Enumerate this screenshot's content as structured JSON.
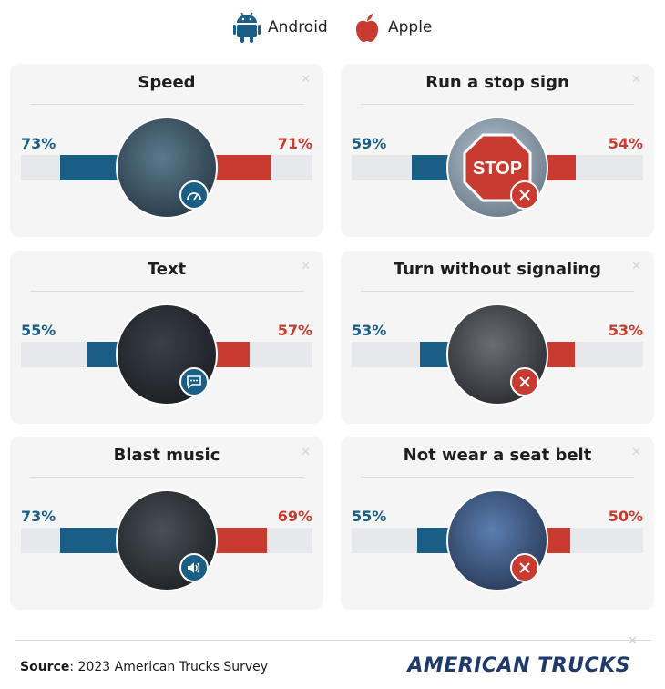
{
  "legend": {
    "android": {
      "label": "Android",
      "icon": "android-icon",
      "color": "#1a5d85"
    },
    "apple": {
      "label": "Apple",
      "icon": "apple-icon",
      "color": "#c93a30"
    }
  },
  "chart_data": {
    "type": "bar",
    "categories": [
      "Speed",
      "Run a stop sign",
      "Text",
      "Turn without signaling",
      "Blast music",
      "Not wear a seat belt"
    ],
    "series": [
      {
        "name": "Android",
        "values": [
          73,
          59,
          55,
          53,
          73,
          55
        ],
        "labels": [
          "73%",
          "59%",
          "55%",
          "53%",
          "73%",
          "55%"
        ],
        "color": "#1a5d85"
      },
      {
        "name": "Apple",
        "values": [
          71,
          54,
          57,
          53,
          69,
          50
        ],
        "labels": [
          "71%",
          "54%",
          "57%",
          "53%",
          "69%",
          "50%"
        ],
        "color": "#c93a30"
      }
    ],
    "unit": "%",
    "ylim": [
      0,
      100
    ],
    "badges": [
      "speedometer-icon",
      "close-icon",
      "chat-bubble-icon",
      "close-icon",
      "speaker-icon",
      "close-icon"
    ]
  },
  "footer": {
    "source_label": "Source",
    "source_text": ": 2023 American Trucks Survey",
    "brand": "AMERICAN TRUCKS"
  }
}
